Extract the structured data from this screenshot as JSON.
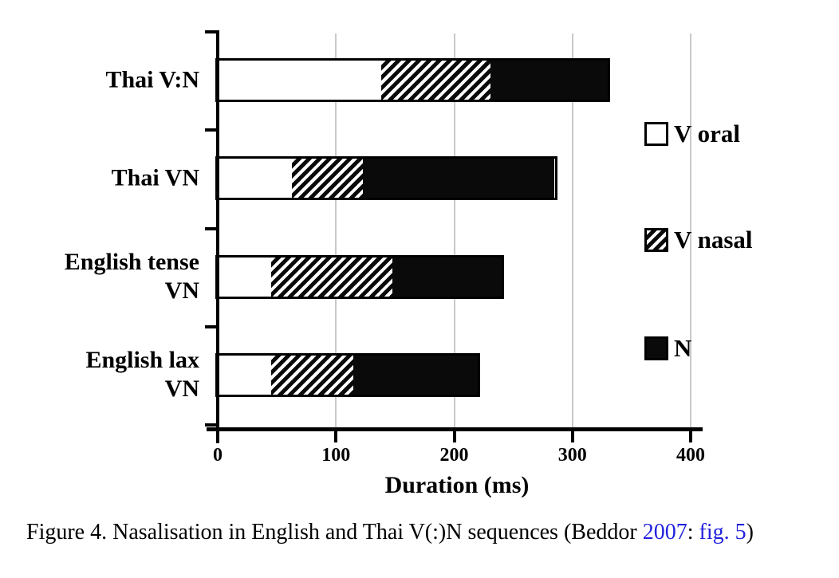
{
  "figure": {
    "caption_segments": [
      {
        "text": "Figure 4. Nasalisation in English and Thai V(:)N sequences (Beddor ",
        "style": "plain"
      },
      {
        "text": "2007",
        "style": "link"
      },
      {
        "text": ": ",
        "style": "plain"
      },
      {
        "text": "fig. 5",
        "style": "link"
      },
      {
        "text": ")",
        "style": "plain"
      }
    ]
  },
  "chart_data": {
    "type": "bar",
    "orientation": "horizontal",
    "title": "",
    "xlabel": "Duration (ms)",
    "units": "ms",
    "xlim": [
      0,
      400
    ],
    "xticks": [
      0,
      100,
      200,
      300,
      400
    ],
    "grid": true,
    "legend_position": "right-inside",
    "categories": [
      "Thai V:N",
      "Thai VN",
      "English tense\nVN",
      "English lax\nVN"
    ],
    "series": [
      {
        "name": "V oral",
        "pattern": "white",
        "values": [
          138,
          63,
          45,
          45
        ]
      },
      {
        "name": "V nasal",
        "pattern": "hatched",
        "values": [
          93,
          60,
          103,
          70
        ]
      },
      {
        "name": "N",
        "pattern": "black",
        "values": [
          99,
          162,
          92,
          105
        ]
      }
    ]
  },
  "colors": {
    "link_blue": "#2222dd",
    "bar_fill_black": "#0a0a0a",
    "gridline_gray": "#c9c9c9"
  }
}
